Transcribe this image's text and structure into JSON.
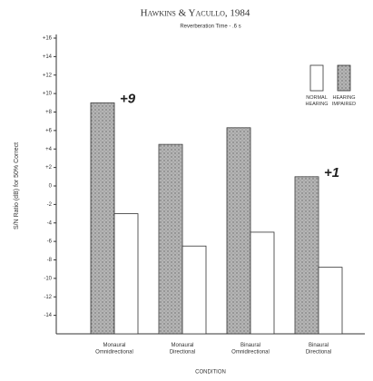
{
  "chart_data": {
    "type": "bar",
    "title": "Hawkins & Yacullo, 1984",
    "subtitle": "Reverberation Time - .6 s",
    "y_label": "S/N Ratio (dB) for 50% Correct",
    "x_label": "CONDITION",
    "categories": [
      "Monaural Omnidirectional",
      "Monaural Directional",
      "Binaural Omnidirectional",
      "Binaural Directional"
    ],
    "series": [
      {
        "name": "NORMAL HEARING",
        "color": "#ffffff",
        "values": [
          -3,
          -6.5,
          -5,
          -8.8
        ]
      },
      {
        "name": "HEARING IMPAIRED",
        "color": "#b5b5b5",
        "values": [
          9,
          4.5,
          6.3,
          1
        ]
      }
    ],
    "annotations": [
      {
        "text": "+9",
        "category": 0
      },
      {
        "text": "+1",
        "category": 3
      }
    ],
    "ylim": [
      -16,
      16
    ],
    "yticks": [
      {
        "value": 16,
        "label": "+16"
      },
      {
        "value": 14,
        "label": "+14"
      },
      {
        "value": 12,
        "label": "+12"
      },
      {
        "value": 10,
        "label": "+10"
      },
      {
        "value": 8,
        "label": "+8"
      },
      {
        "value": 6,
        "label": "+6"
      },
      {
        "value": 4,
        "label": "+4"
      },
      {
        "value": 2,
        "label": "+2"
      },
      0,
      -2,
      -4,
      -6,
      -8,
      -10,
      -12,
      -14
    ],
    "grid": false
  }
}
